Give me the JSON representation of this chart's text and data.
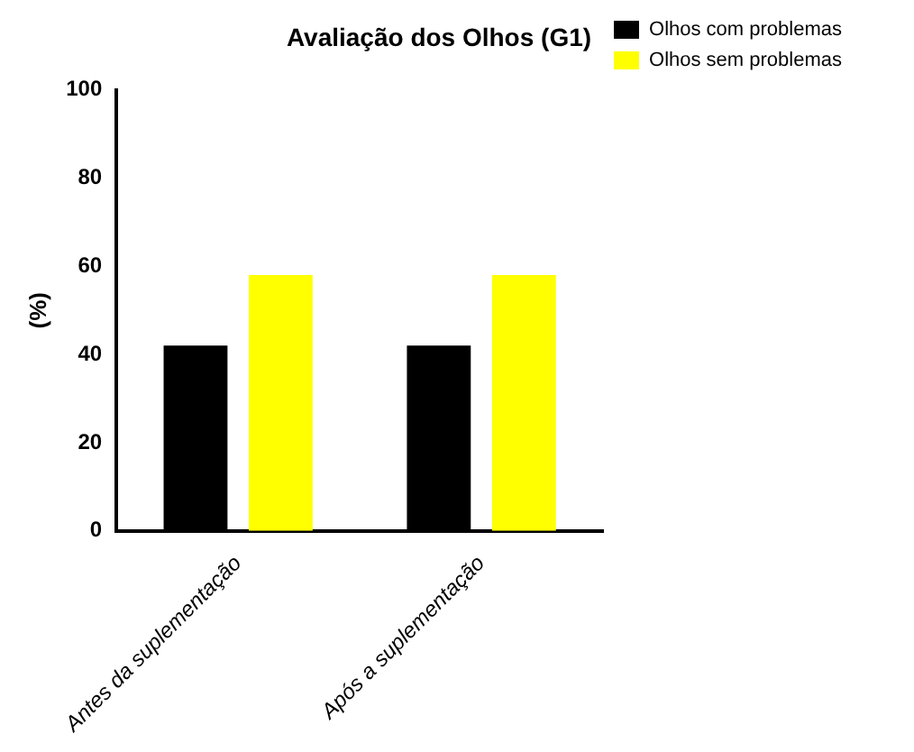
{
  "chart_data": {
    "type": "bar",
    "title": "Avaliação dos Olhos (G1)",
    "ylabel": "(%)",
    "categories": [
      "Antes da suplementação",
      "Após a suplementação"
    ],
    "series": [
      {
        "name": "Olhos com problemas",
        "color": "#000000",
        "values": [
          42,
          42
        ]
      },
      {
        "name": "Olhos sem problemas",
        "color": "#ffff00",
        "values": [
          58,
          58
        ]
      }
    ],
    "ylim": [
      0,
      100
    ],
    "yticks": [
      0,
      20,
      40,
      60,
      80,
      100
    ],
    "grid": false,
    "legend": "top right"
  }
}
